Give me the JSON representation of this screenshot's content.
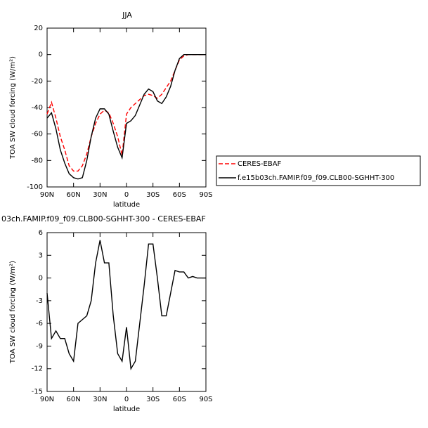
{
  "chart_data": [
    {
      "type": "line",
      "title": "JJA",
      "ylabel": "TOA SW cloud forcing (W/m²)",
      "xlabel": "latitude",
      "x": [
        90,
        85,
        80,
        75,
        70,
        65,
        60,
        55,
        50,
        45,
        40,
        35,
        30,
        25,
        20,
        15,
        10,
        5,
        0,
        -5,
        -10,
        -15,
        -20,
        -25,
        -30,
        -35,
        -40,
        -45,
        -50,
        -55,
        -60,
        -65,
        -70,
        -75,
        -80,
        -85,
        -90
      ],
      "series": [
        {
          "name": "CERES-EBAF",
          "color": "#ff0000",
          "dash": "dashed",
          "values": [
            -45,
            -36,
            -48,
            -62,
            -72,
            -84,
            -88,
            -88,
            -84,
            -75,
            -62,
            -52,
            -45,
            -42,
            -44,
            -52,
            -62,
            -76,
            -45,
            -40,
            -37,
            -34,
            -31,
            -30,
            -31,
            -33,
            -30,
            -25,
            -20,
            -12,
            -4,
            -1,
            0,
            0,
            0,
            0,
            0
          ]
        },
        {
          "name": "f.e15b03ch.FAMIP.f09_f09.CLB00-SGHHT-300",
          "color": "#000000",
          "dash": "solid",
          "values": [
            -48,
            -44,
            -56,
            -72,
            -82,
            -90,
            -93,
            -94,
            -93,
            -80,
            -62,
            -48,
            -41,
            -41,
            -45,
            -58,
            -70,
            -78,
            -52,
            -50,
            -46,
            -38,
            -30,
            -26,
            -28,
            -35,
            -37,
            -32,
            -24,
            -12,
            -3,
            0,
            0,
            0,
            0,
            0,
            0
          ]
        }
      ],
      "xlim": [
        90,
        -90
      ],
      "xticks": [
        {
          "value": 90,
          "label": "90N"
        },
        {
          "value": 60,
          "label": "60N"
        },
        {
          "value": 30,
          "label": "30N"
        },
        0,
        {
          "value": -30,
          "label": "30S"
        },
        {
          "value": -60,
          "label": "60S"
        },
        {
          "value": -90,
          "label": "90S"
        }
      ],
      "ylim": [
        -100,
        20
      ],
      "yticks": [
        20,
        0,
        -20,
        -40,
        -60,
        -80,
        -100
      ],
      "legend": "right"
    },
    {
      "type": "line",
      "title": "03ch.FAMIP.f09_f09.CLB00-SGHHT-300 - CERES-EBAF",
      "ylabel": "TOA SW cloud forcing (W/m²)",
      "xlabel": "latitude",
      "x": [
        90,
        85,
        80,
        75,
        70,
        65,
        60,
        55,
        50,
        45,
        40,
        35,
        30,
        25,
        20,
        15,
        10,
        5,
        0,
        -5,
        -10,
        -15,
        -20,
        -25,
        -30,
        -35,
        -40,
        -45,
        -50,
        -55,
        -60,
        -65,
        -70,
        -75,
        -80,
        -85,
        -90
      ],
      "series": [
        {
          "color": "#000000",
          "dash": "solid",
          "values": [
            -2,
            -8,
            -7,
            -8,
            -8,
            -10,
            -11,
            -6,
            -5.5,
            -5,
            -3,
            2,
            5,
            2,
            2,
            -5,
            -10,
            -11,
            -6.5,
            -12,
            -11,
            -6,
            -1,
            4.5,
            4.5,
            0,
            -5,
            -5,
            -2,
            1,
            0.8,
            0.8,
            0,
            0.2,
            0,
            0,
            0
          ]
        }
      ],
      "xlim": [
        90,
        -90
      ],
      "xticks": [
        {
          "value": 90,
          "label": "90N"
        },
        {
          "value": 60,
          "label": "60N"
        },
        {
          "value": 30,
          "label": "30N"
        },
        0,
        {
          "value": -30,
          "label": "30S"
        },
        {
          "value": -60,
          "label": "60S"
        },
        {
          "value": -90,
          "label": "90S"
        }
      ],
      "ylim": [
        -15,
        6
      ],
      "yticks": [
        6,
        3,
        0,
        -3,
        -6,
        -9,
        -12,
        -15
      ]
    }
  ]
}
